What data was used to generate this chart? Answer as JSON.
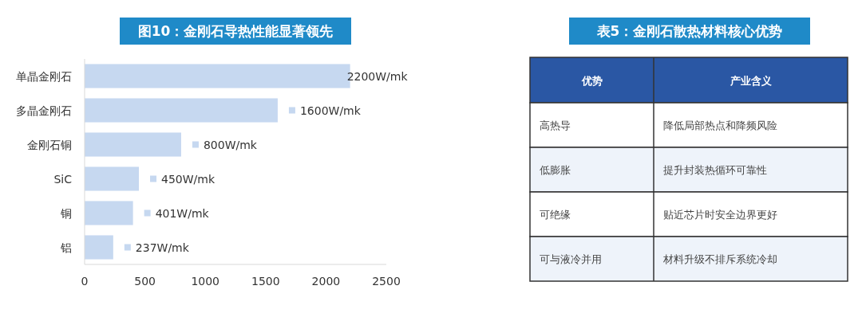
{
  "chart_data": [
    {
      "type": "bar",
      "orientation": "horizontal",
      "title": "图10：金刚石导热性能显著领先",
      "categories": [
        "单晶金刚石",
        "多晶金刚石",
        "金刚石铜",
        "SiC",
        "铜",
        "铝"
      ],
      "values": [
        2200,
        1600,
        800,
        450,
        401,
        237
      ],
      "value_labels": [
        "2200W/mk",
        "1600W/mk",
        "800W/mk",
        "450W/mk",
        "401W/mk",
        "237W/mk"
      ],
      "color": "#c6d8f0",
      "xlim": [
        0,
        2500
      ],
      "xticks": [
        0,
        500,
        1000,
        1500,
        2000,
        2500
      ],
      "grid": false,
      "legend": false
    },
    {
      "type": "other",
      "title": "表5：金刚石散热材料核心优势",
      "annotations": [
        "优势",
        "产业含义",
        "高热导",
        "降低局部热点和降频风险",
        "低膨胀",
        "提升封装热循环可靠性",
        "可绝缘",
        "贴近芯片时安全边界更好",
        "可与液冷并用",
        "材料升级不排斥系统冷却"
      ]
    }
  ]
}
